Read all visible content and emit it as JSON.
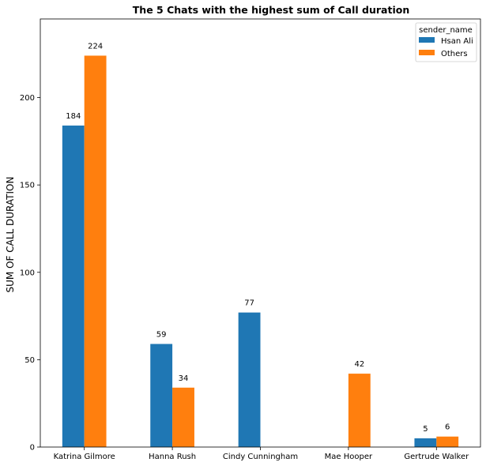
{
  "chart_data": {
    "type": "bar",
    "title": "The 5 Chats with the highest sum of Call duration",
    "xlabel": "",
    "ylabel": "SUM OF CALL DURATION",
    "categories": [
      "Katrina Gilmore",
      "Hanna Rush",
      "Cindy Cunningham",
      "Mae Hooper",
      "Gertrude Walker"
    ],
    "series": [
      {
        "name": "Hsan Ali",
        "color": "#1f77b4",
        "values": [
          184,
          59,
          77,
          null,
          5
        ]
      },
      {
        "name": "Others",
        "color": "#ff7f0e",
        "values": [
          224,
          34,
          null,
          42,
          6
        ]
      }
    ],
    "ylim": [
      0,
      245
    ],
    "yticks": [
      0,
      50,
      100,
      150,
      200
    ],
    "legend": {
      "title": "sender_name",
      "placement": "top-right"
    },
    "grid": false
  }
}
